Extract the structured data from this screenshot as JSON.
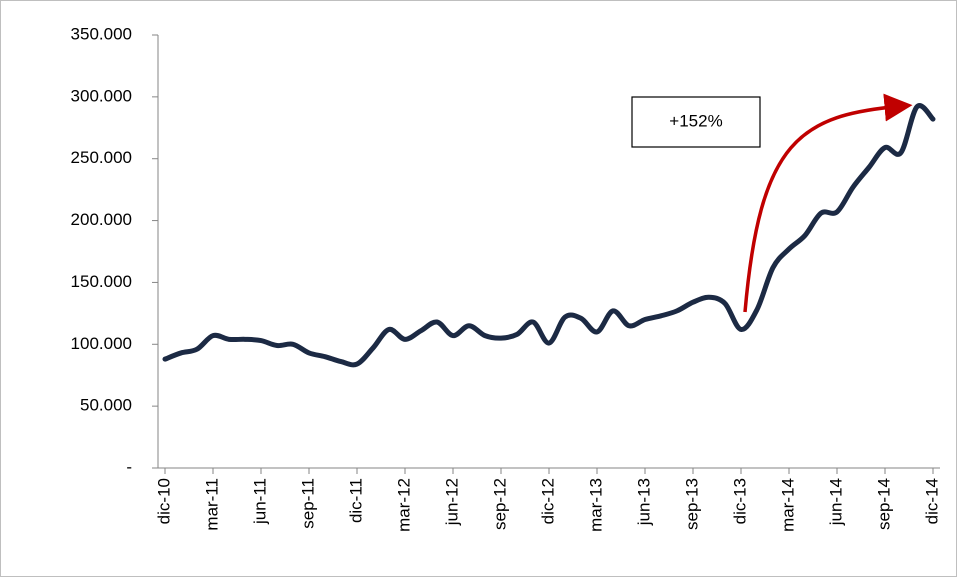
{
  "chart_data": {
    "type": "line",
    "categories": [
      "dic-10",
      null,
      null,
      "mar-11",
      null,
      null,
      "jun-11",
      null,
      null,
      "sep-11",
      null,
      null,
      "dic-11",
      null,
      null,
      "mar-12",
      null,
      null,
      "jun-12",
      null,
      null,
      "sep-12",
      null,
      null,
      "dic-12",
      null,
      null,
      "mar-13",
      null,
      null,
      "jun-13",
      null,
      null,
      "sep-13",
      null,
      null,
      "dic-13",
      null,
      null,
      "mar-14",
      null,
      null,
      "jun-14",
      null,
      null,
      "sep-14",
      null,
      null,
      "dic-14"
    ],
    "values": [
      88000,
      93000,
      96000,
      107000,
      104000,
      104000,
      103000,
      99000,
      100000,
      93000,
      90000,
      86000,
      84000,
      97000,
      112000,
      104000,
      111000,
      118000,
      107000,
      115000,
      107000,
      105000,
      108000,
      118000,
      101000,
      122000,
      121000,
      110000,
      127000,
      115000,
      120000,
      123000,
      127000,
      134000,
      138000,
      133000,
      112000,
      128000,
      162000,
      177000,
      188000,
      206000,
      207000,
      227000,
      243000,
      259000,
      255000,
      292000,
      282000
    ],
    "color": "#1c2a44",
    "ylim": [
      0,
      350000
    ],
    "yticks": [
      {
        "value": 0,
        "label": "-"
      },
      {
        "value": 50000,
        "label": "50.000"
      },
      {
        "value": 100000,
        "label": "100.000"
      },
      {
        "value": 150000,
        "label": "150.000"
      },
      {
        "value": 200000,
        "label": "200.000"
      },
      {
        "value": 250000,
        "label": "250.000"
      },
      {
        "value": 300000,
        "label": "300.000"
      },
      {
        "value": 350000,
        "label": "350.000"
      }
    ],
    "annotation": "+152%"
  }
}
